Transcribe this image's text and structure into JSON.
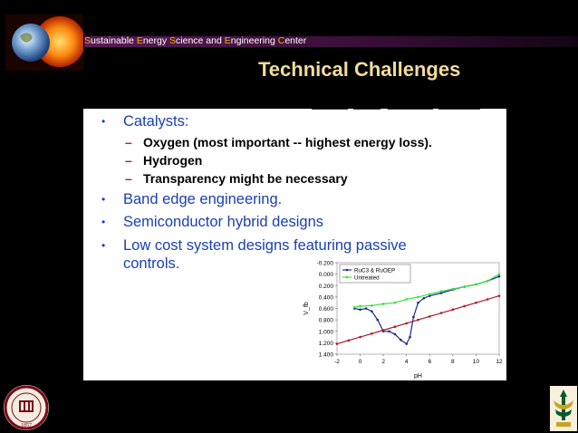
{
  "header": {
    "center_name_parts": [
      {
        "cap": "S",
        "rest": "ustainable "
      },
      {
        "cap": "E",
        "rest": "nergy "
      },
      {
        "cap": "S",
        "rest": "cience and "
      },
      {
        "cap": "E",
        "rest": "ngineering "
      },
      {
        "cap": "C",
        "rest": "enter"
      }
    ],
    "logo_icon": "earth-sun-icon"
  },
  "title": "Technical Challenges",
  "bullets": {
    "b1": "Catalysts:",
    "s1": "Oxygen (most important -- highest energy loss).",
    "s2": "Hydrogen",
    "s3": "Transparency might be necessary",
    "b2": "Band edge engineering.",
    "b3": "Semiconductor hybrid designs",
    "b4_line1": "Low cost system designs featuring passive",
    "b4_line2": "controls.",
    "bullet_symbol": "•",
    "dash_symbol": "–"
  },
  "chart_data": {
    "type": "line",
    "xlabel": "pH",
    "ylabel": "V_fb",
    "x_ticks": [
      -2,
      0,
      2,
      4,
      6,
      8,
      10,
      12
    ],
    "y_ticks": [
      "-0.200",
      "0.000",
      "0.200",
      "0.400",
      "0.600",
      "0.800",
      "1.000",
      "1.200",
      "1.400"
    ],
    "xlim": [
      -2,
      12
    ],
    "ylim": [
      -0.2,
      1.4
    ],
    "y_inverted": true,
    "series": [
      {
        "name": "RuC3 & RuOEP",
        "color": "#1a2a8c",
        "x": [
          -0.5,
          0,
          0.5,
          1,
          1.5,
          2,
          2.5,
          3,
          3.5,
          4,
          4.3,
          4.6,
          5,
          5.5,
          6,
          7,
          8,
          9,
          10,
          11,
          12
        ],
        "y": [
          0.6,
          0.62,
          0.6,
          0.65,
          0.8,
          1.0,
          1.0,
          1.05,
          1.15,
          1.22,
          1.1,
          0.75,
          0.5,
          0.42,
          0.38,
          0.33,
          0.27,
          0.22,
          0.18,
          0.12,
          0.04
        ]
      },
      {
        "name": "Untreated",
        "color": "#3de03d",
        "x": [
          -0.5,
          0,
          1,
          2,
          3,
          4,
          5,
          6,
          7,
          8,
          9,
          10,
          11,
          12
        ],
        "y": [
          0.58,
          0.56,
          0.55,
          0.52,
          0.5,
          0.44,
          0.4,
          0.35,
          0.3,
          0.26,
          0.22,
          0.18,
          0.12,
          0.0
        ]
      },
      {
        "name": "",
        "color": "#b0182a",
        "x": [
          -2,
          -1,
          0,
          1,
          2,
          3,
          4,
          5,
          6,
          7,
          8,
          9,
          10,
          11,
          12
        ],
        "y": [
          1.22,
          1.16,
          1.1,
          1.04,
          0.98,
          0.92,
          0.86,
          0.8,
          0.74,
          0.68,
          0.62,
          0.56,
          0.5,
          0.44,
          0.38
        ]
      }
    ],
    "legend_placement": "top-left"
  },
  "colors": {
    "title": "#f2dc9a",
    "bullet_text": "#1b40b0",
    "dash": "#c0182a",
    "center_cap": "#f0b400"
  },
  "footer": {
    "left_logo_icon": "fsu-seal-icon",
    "left_logo_year": "1857",
    "right_logo_icon": "usf-logo-icon"
  }
}
